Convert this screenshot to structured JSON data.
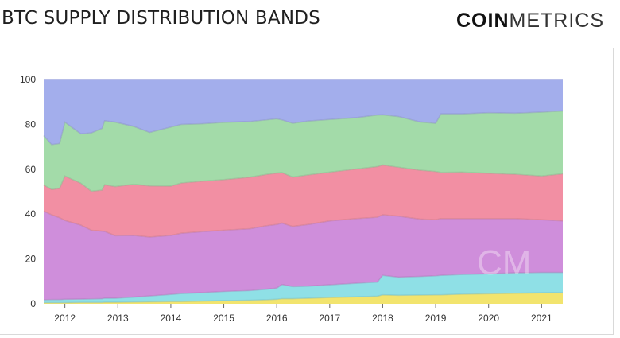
{
  "header": {
    "title": "BTC SUPPLY DISTRIBUTION BANDS",
    "logo_bold": "COIN",
    "logo_light": "METRICS"
  },
  "watermark": "CM",
  "chart_data": {
    "type": "area",
    "stacked": true,
    "ylim": [
      0,
      100
    ],
    "yticks": [
      0,
      20,
      40,
      60,
      80,
      100
    ],
    "xlim": [
      2011.6,
      2021.4
    ],
    "xticks": [
      2012,
      2013,
      2014,
      2015,
      2016,
      2017,
      2018,
      2019,
      2020,
      2021
    ],
    "grid": false,
    "legend": "none",
    "x": [
      2011.6,
      2011.75,
      2011.9,
      2012.0,
      2012.3,
      2012.5,
      2012.7,
      2012.75,
      2012.95,
      2013.3,
      2013.6,
      2014.0,
      2014.2,
      2014.6,
      2015.0,
      2015.5,
      2015.8,
      2016.0,
      2016.1,
      2016.3,
      2016.6,
      2017.0,
      2017.5,
      2017.9,
      2018.0,
      2018.3,
      2018.7,
      2019.0,
      2019.1,
      2019.5,
      2020.0,
      2020.5,
      2021.0,
      2021.4
    ],
    "series": [
      {
        "color": "#f2e46e",
        "values": [
          0.5,
          0.5,
          0.5,
          0.5,
          0.6,
          0.6,
          0.6,
          0.7,
          0.7,
          0.8,
          0.9,
          1.0,
          1.0,
          1.2,
          1.4,
          1.6,
          1.8,
          2.0,
          2.3,
          2.3,
          2.5,
          2.8,
          3.1,
          3.4,
          4.0,
          3.8,
          3.9,
          4.0,
          4.0,
          4.3,
          4.5,
          4.7,
          4.9,
          5.0
        ]
      },
      {
        "color": "#8fe0e6",
        "values": [
          1.3,
          1.4,
          1.4,
          1.5,
          1.5,
          1.6,
          1.7,
          1.8,
          1.8,
          2.2,
          2.6,
          3.2,
          3.6,
          3.8,
          4.1,
          4.3,
          4.7,
          5.0,
          6.3,
          5.4,
          5.4,
          5.7,
          6.1,
          6.3,
          8.7,
          8.1,
          8.3,
          8.5,
          8.7,
          8.8,
          8.9,
          9.1,
          9.1,
          9.0
        ]
      },
      {
        "color": "#cf8edb",
        "values": [
          39.5,
          37.8,
          36.5,
          35.2,
          33.0,
          30.6,
          30.1,
          29.8,
          27.9,
          27.5,
          26.3,
          26.3,
          26.9,
          27.2,
          27.3,
          27.6,
          28.3,
          28.4,
          27.4,
          26.8,
          27.5,
          28.5,
          28.8,
          28.9,
          27.0,
          27.2,
          25.6,
          25.0,
          25.3,
          24.9,
          24.6,
          24.2,
          23.5,
          23.0
        ]
      },
      {
        "color": "#f28fa3",
        "values": [
          11.7,
          11.3,
          13.1,
          19.8,
          18.7,
          17.4,
          18.3,
          20.8,
          21.9,
          22.8,
          22.8,
          22.0,
          22.4,
          22.5,
          22.6,
          23.0,
          22.9,
          22.9,
          22.5,
          22.0,
          22.1,
          21.7,
          22.1,
          22.6,
          22.2,
          21.8,
          21.8,
          21.5,
          20.6,
          20.7,
          20.2,
          19.8,
          19.5,
          21.0
        ]
      },
      {
        "color": "#a3dba9",
        "values": [
          22.0,
          20.0,
          20.0,
          24.0,
          22.0,
          26.0,
          27.5,
          28.5,
          28.7,
          25.8,
          23.8,
          26.3,
          26.1,
          25.6,
          25.5,
          24.8,
          24.3,
          24.2,
          23.5,
          24.0,
          24.0,
          23.5,
          22.9,
          23.0,
          22.4,
          22.6,
          21.5,
          21.5,
          26.1,
          26.0,
          27.0,
          27.2,
          28.5,
          28.0
        ]
      },
      {
        "color": "#a3aeec",
        "values": [
          25.0,
          29.0,
          28.5,
          19.0,
          24.2,
          23.8,
          21.8,
          18.4,
          19.0,
          20.9,
          23.6,
          21.2,
          20.0,
          19.7,
          19.1,
          18.7,
          18.0,
          17.5,
          18.0,
          19.5,
          18.5,
          17.8,
          17.0,
          15.8,
          15.7,
          16.5,
          18.9,
          19.5,
          15.3,
          15.3,
          14.8,
          15.0,
          14.5,
          14.0
        ]
      }
    ]
  }
}
